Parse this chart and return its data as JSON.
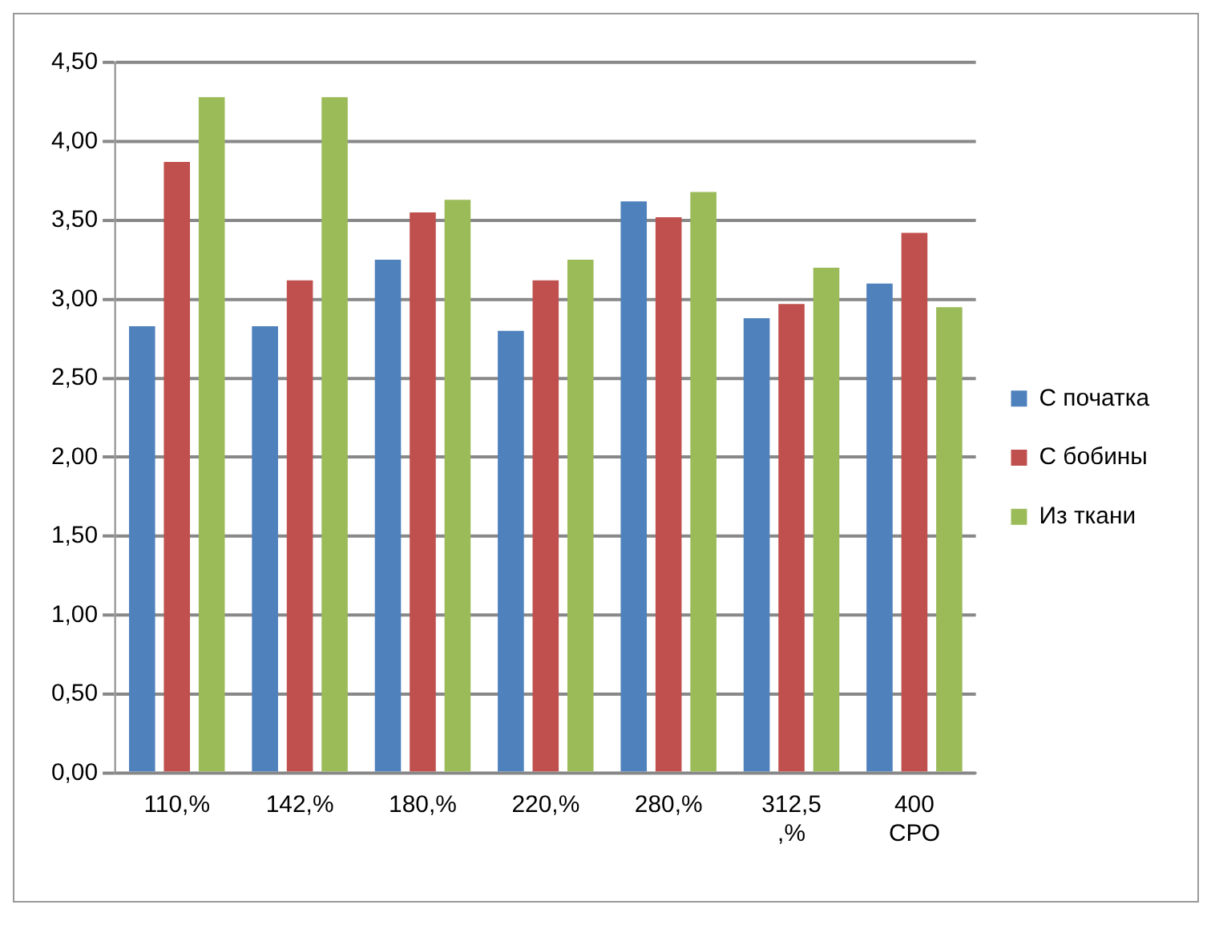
{
  "chart_data": {
    "type": "bar",
    "categories": [
      "110,%",
      "142,%",
      "180,%",
      "220,%",
      "280,%",
      "312,5\n,%",
      "400\nСРО"
    ],
    "series": [
      {
        "name": "С початка",
        "color": "#4f81bd",
        "values": [
          2.83,
          2.83,
          3.25,
          2.8,
          3.62,
          2.88,
          3.1
        ]
      },
      {
        "name": "С бобины",
        "color": "#c0504d",
        "values": [
          3.87,
          3.12,
          3.55,
          3.12,
          3.52,
          2.97,
          3.42
        ]
      },
      {
        "name": "Из ткани",
        "color": "#9bbb59",
        "values": [
          4.28,
          4.28,
          3.63,
          3.25,
          3.68,
          3.2,
          2.95
        ]
      }
    ],
    "ylim": [
      0,
      4.5
    ],
    "yticks": [
      {
        "value": 0,
        "label": "0,00"
      },
      {
        "value": 0.5,
        "label": "0,50"
      },
      {
        "value": 1,
        "label": "1,00"
      },
      {
        "value": 1.5,
        "label": "1,50"
      },
      {
        "value": 2,
        "label": "2,00"
      },
      {
        "value": 2.5,
        "label": "2,50"
      },
      {
        "value": 3,
        "label": "3,00"
      },
      {
        "value": 3.5,
        "label": "3,50"
      },
      {
        "value": 4,
        "label": "4,00"
      },
      {
        "value": 4.5,
        "label": "4,50"
      }
    ],
    "grid": "y",
    "legend": "right"
  }
}
